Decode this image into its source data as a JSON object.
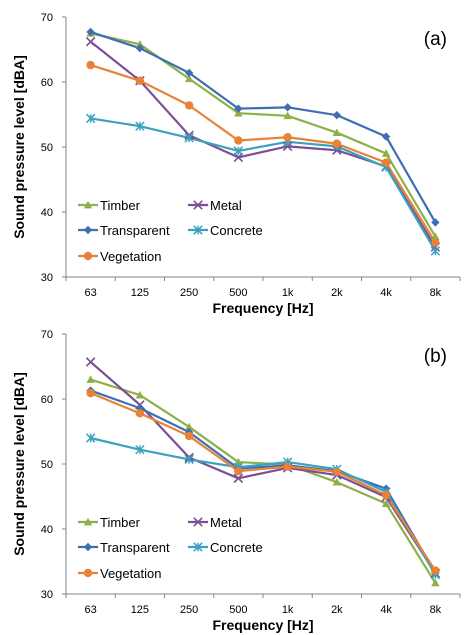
{
  "chart_data": [
    {
      "type": "line",
      "panel_label": "(a)",
      "xlabel": "Frequency [Hz]",
      "ylabel": "Sound pressure level [dBA]",
      "categories": [
        "63",
        "125",
        "250",
        "500",
        "1k",
        "2k",
        "4k",
        "8k"
      ],
      "ylim": [
        30,
        70
      ],
      "yticks": [
        30,
        40,
        50,
        60,
        70
      ],
      "grid": false,
      "legend_position": "bottom-left",
      "series": [
        {
          "name": "Timber",
          "color": "#8db04a",
          "marker": "triangle",
          "values": [
            67.5,
            65.8,
            60.5,
            55.2,
            54.8,
            52.2,
            49,
            36.2
          ]
        },
        {
          "name": "Metal",
          "color": "#7b4f96",
          "marker": "x",
          "values": [
            66.2,
            60.2,
            51.8,
            48.4,
            50.1,
            49.5,
            47,
            34.6
          ]
        },
        {
          "name": "Transparent",
          "color": "#3f6eb2",
          "marker": "diamond",
          "values": [
            67.7,
            65.2,
            61.4,
            55.9,
            56.1,
            54.9,
            51.6,
            38.4
          ]
        },
        {
          "name": "Concrete",
          "color": "#3aa2bf",
          "marker": "star",
          "values": [
            54.4,
            53.2,
            51.4,
            49.4,
            50.8,
            50.1,
            46.9,
            34
          ]
        },
        {
          "name": "Vegetation",
          "color": "#e78237",
          "marker": "circle",
          "values": [
            62.6,
            60.2,
            56.4,
            51,
            51.5,
            50.5,
            47.6,
            35.3
          ]
        }
      ]
    },
    {
      "type": "line",
      "panel_label": "(b)",
      "xlabel": "Frequency [Hz]",
      "ylabel": "Sound pressure level [dBA]",
      "categories": [
        "63",
        "125",
        "250",
        "500",
        "1k",
        "2k",
        "4k",
        "8k"
      ],
      "ylim": [
        30,
        70
      ],
      "yticks": [
        30,
        40,
        50,
        60,
        70
      ],
      "grid": false,
      "legend_position": "bottom-left",
      "series": [
        {
          "name": "Timber",
          "color": "#8db04a",
          "marker": "triangle",
          "values": [
            63,
            60.6,
            55.7,
            50.3,
            49.9,
            47.2,
            43.9,
            31.7
          ]
        },
        {
          "name": "Metal",
          "color": "#7b4f96",
          "marker": "x",
          "values": [
            65.7,
            59.1,
            51,
            47.8,
            49.4,
            48.3,
            44.9,
            33.2
          ]
        },
        {
          "name": "Transparent",
          "color": "#3f6eb2",
          "marker": "diamond",
          "values": [
            61.3,
            58.6,
            54.9,
            49.3,
            49.8,
            48.9,
            46.2,
            33.2
          ]
        },
        {
          "name": "Concrete",
          "color": "#3aa2bf",
          "marker": "star",
          "values": [
            54,
            52.2,
            50.7,
            49.5,
            50.3,
            49.2,
            45.7,
            33
          ]
        },
        {
          "name": "Vegetation",
          "color": "#e78237",
          "marker": "circle",
          "values": [
            60.9,
            57.8,
            54.3,
            48.9,
            49.6,
            48.8,
            45.2,
            33.6
          ]
        }
      ]
    }
  ]
}
